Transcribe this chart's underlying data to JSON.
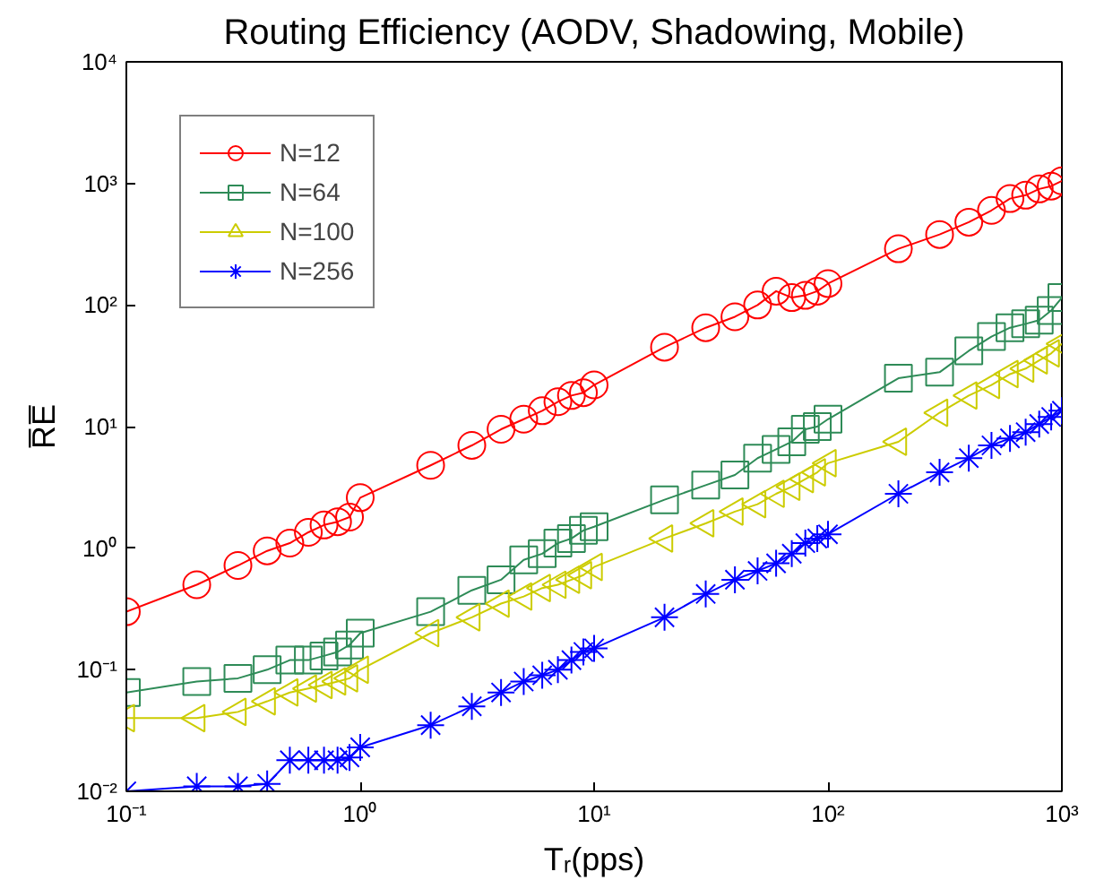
{
  "chart_data": {
    "type": "line",
    "title": "Routing Efficiency (AODV, Shadowing, Mobile)",
    "xlabel": "Tᵣ(pps)",
    "ylabel": "R̅E̅",
    "x": [
      0.1,
      0.2,
      0.3,
      0.4,
      0.5,
      0.6,
      0.7,
      0.8,
      0.9,
      1,
      2,
      3,
      4,
      5,
      6,
      7,
      8,
      9,
      10,
      20,
      30,
      40,
      50,
      60,
      70,
      80,
      90,
      100,
      200,
      300,
      400,
      500,
      600,
      700,
      800,
      900,
      1000
    ],
    "series": [
      {
        "name": "N=12",
        "color": "#ff0000",
        "marker": "circle",
        "values": [
          0.3,
          0.5,
          0.72,
          0.95,
          1.1,
          1.35,
          1.55,
          1.65,
          1.8,
          2.6,
          4.8,
          7,
          9.5,
          11.5,
          13.5,
          16,
          18,
          19,
          22,
          45,
          65,
          80,
          100,
          130,
          115,
          120,
          130,
          150,
          290,
          380,
          480,
          600,
          750,
          800,
          900,
          950,
          1050
        ]
      },
      {
        "name": "N=64",
        "color": "#2e8b57",
        "marker": "square",
        "values": [
          0.065,
          0.08,
          0.085,
          0.1,
          0.12,
          0.12,
          0.13,
          0.14,
          0.16,
          0.2,
          0.3,
          0.45,
          0.55,
          0.8,
          0.9,
          1.1,
          1.2,
          1.4,
          1.5,
          2.5,
          3.3,
          4,
          5.5,
          6.5,
          7.5,
          9.5,
          10,
          11.5,
          25,
          28,
          42,
          55,
          65,
          70,
          75,
          90,
          115
        ]
      },
      {
        "name": "N=100",
        "color": "#cccc00",
        "marker": "triangle",
        "values": [
          0.04,
          0.04,
          0.045,
          0.055,
          0.065,
          0.07,
          0.075,
          0.08,
          0.085,
          0.1,
          0.2,
          0.27,
          0.35,
          0.4,
          0.47,
          0.5,
          0.55,
          0.6,
          0.7,
          1.2,
          1.6,
          2,
          2.3,
          2.8,
          3.2,
          3.7,
          4.2,
          5,
          7.5,
          13,
          18,
          22,
          27,
          30,
          35,
          40,
          48
        ]
      },
      {
        "name": "N=256",
        "color": "#0000ff",
        "marker": "cross",
        "values": [
          0.01,
          0.011,
          0.011,
          0.0115,
          0.018,
          0.018,
          0.018,
          0.018,
          0.019,
          0.023,
          0.035,
          0.05,
          0.065,
          0.08,
          0.09,
          0.1,
          0.12,
          0.14,
          0.15,
          0.27,
          0.42,
          0.55,
          0.65,
          0.75,
          0.9,
          1.1,
          1.2,
          1.3,
          2.8,
          4.2,
          5.5,
          7,
          8,
          9,
          10.5,
          12,
          13.5
        ]
      }
    ],
    "log": "xy",
    "xlim": [
      0.1,
      1000
    ],
    "ylim": [
      0.01,
      10000
    ],
    "xticks": [
      {
        "value": 0.1,
        "label": "10⁻¹"
      },
      {
        "value": 1,
        "label": "10⁰"
      },
      {
        "value": 10,
        "label": "10¹"
      },
      {
        "value": 100,
        "label": "10²"
      },
      {
        "value": 1000,
        "label": "10³"
      }
    ],
    "yticks": [
      {
        "value": 0.01,
        "label": "10⁻²"
      },
      {
        "value": 0.1,
        "label": "10⁻¹"
      },
      {
        "value": 1,
        "label": "10⁰"
      },
      {
        "value": 10,
        "label": "10¹"
      },
      {
        "value": 100,
        "label": "10²"
      },
      {
        "value": 1000,
        "label": "10³"
      },
      {
        "value": 10000,
        "label": "10⁴"
      }
    ],
    "grid": false,
    "legend": "top left",
    "line_style": "solid"
  }
}
